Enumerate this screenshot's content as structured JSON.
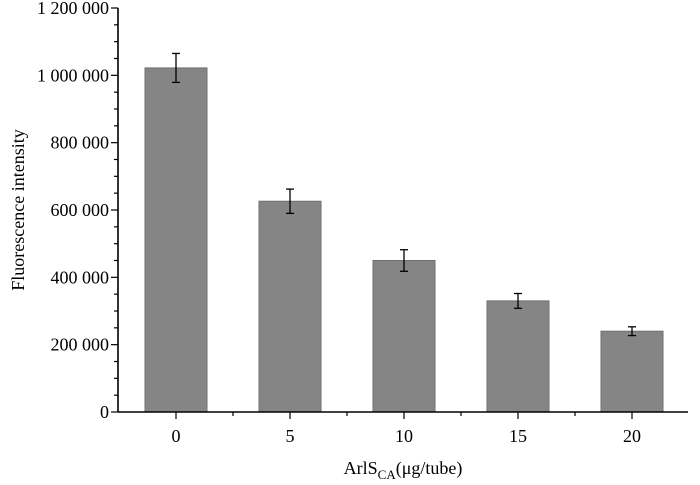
{
  "chart_data": {
    "type": "bar",
    "categories": [
      "0",
      "5",
      "10",
      "15",
      "20"
    ],
    "values": [
      1022000,
      626000,
      450000,
      330000,
      240000
    ],
    "errors": [
      43000,
      36000,
      32000,
      22000,
      13000
    ],
    "xlabel": {
      "main": "ArlS",
      "subscript": "CA",
      "suffix": "(μg/tube)"
    },
    "ylabel": "Fluorescence intensity",
    "ylim": [
      0,
      1200000
    ],
    "yticks": [
      0,
      200000,
      400000,
      600000,
      800000,
      1000000,
      1200000
    ],
    "ytick_labels": [
      "0",
      "200 000",
      "400 000",
      "600 000",
      "800 000",
      "1 000 000",
      "1 200 000"
    ],
    "bar_color": "#858585",
    "grid": false,
    "legend": "none"
  }
}
